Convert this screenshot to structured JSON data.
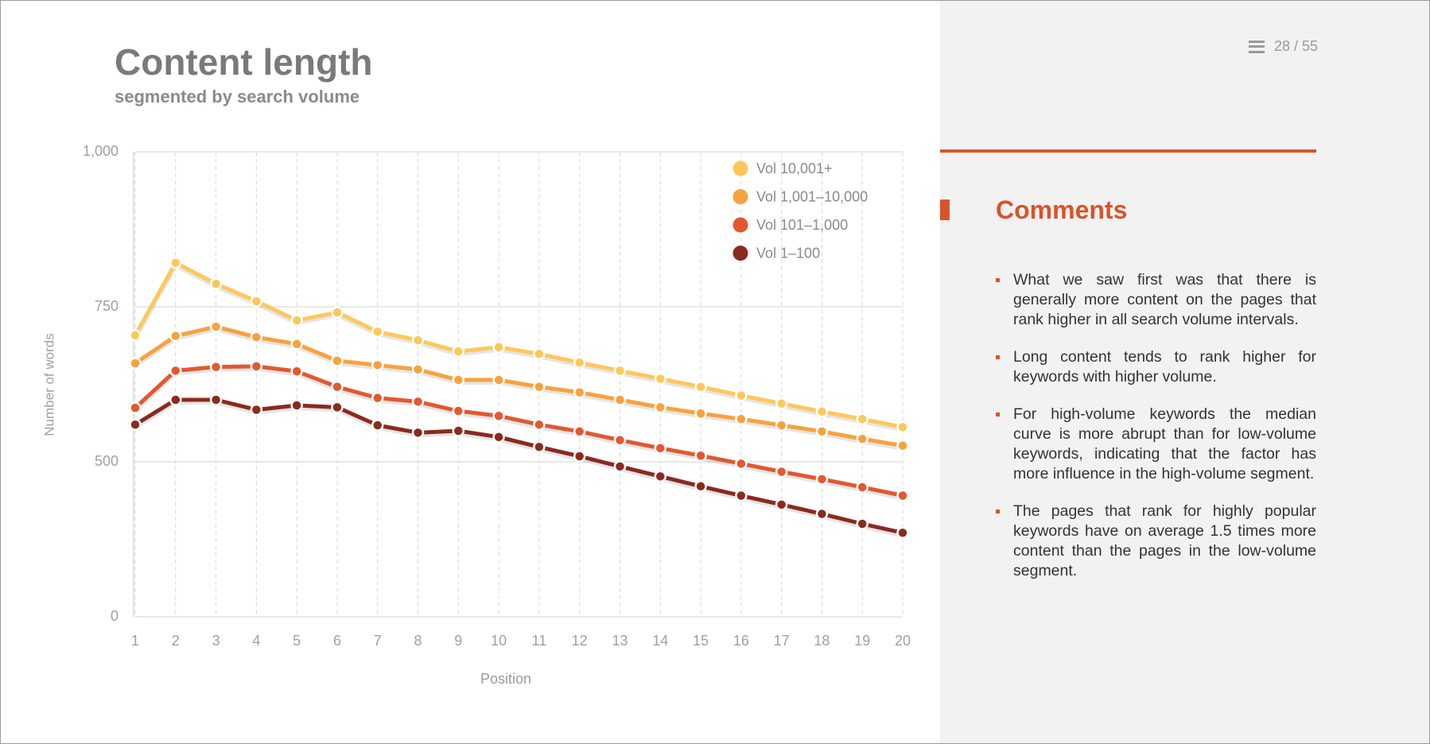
{
  "chart_data": {
    "type": "line",
    "title": "Content length",
    "subtitle": "segmented by search volume",
    "x_label": "Position",
    "y_label": "Number of words",
    "categories": [
      "1",
      "2",
      "3",
      "4",
      "5",
      "6",
      "7",
      "8",
      "9",
      "10",
      "11",
      "12",
      "13",
      "14",
      "15",
      "16",
      "17",
      "18",
      "19",
      "20"
    ],
    "series": [
      {
        "name": "Vol 10,001+",
        "color": "#fdc85a",
        "values": [
          704,
          821,
          787,
          759,
          728,
          741,
          710,
          696,
          678,
          685,
          674,
          660,
          647,
          634,
          621,
          607,
          594,
          581,
          569,
          556
        ]
      },
      {
        "name": "Vol 1,001–10,000",
        "color": "#f7a23e",
        "values": [
          659,
          703,
          718,
          701,
          690,
          663,
          656,
          649,
          632,
          632,
          621,
          612,
          600,
          588,
          578,
          569,
          559,
          549,
          537,
          526
        ]
      },
      {
        "name": "Vol 101–1,000",
        "color": "#e3582f",
        "values": [
          587,
          647,
          653,
          654,
          646,
          621,
          603,
          597,
          582,
          574,
          560,
          549,
          535,
          522,
          510,
          494,
          468,
          444,
          418,
          391
        ]
      },
      {
        "name": "Vol 1–100",
        "color": "#8b2a1e",
        "values": [
          560,
          600,
          600,
          584,
          591,
          588,
          559,
          547,
          550,
          540,
          524,
          509,
          485,
          453,
          421,
          391,
          362,
          332,
          300,
          271
        ]
      }
    ],
    "ylim": [
      0,
      1000
    ],
    "yticks": [
      0,
      500,
      750,
      {
        "value": 1000,
        "label": "1,000"
      }
    ],
    "grid": true,
    "legend": "top-right"
  },
  "page_counter": "28 / 55",
  "comments": {
    "title": "Comments",
    "items": [
      "What we saw first was that there is generally more content on the pages that rank higher in all search volume intervals.",
      "Long content tends to rank higher for keywords with higher volume.",
      "For high-volume keywords the median curve is more abrupt than for low-volume keywords, indicating that the factor has more influence in the high-volume segment.",
      "The pages that rank for highly popular keywords have on average 1.5 times more content than the pages in the low-volume segment."
    ]
  }
}
